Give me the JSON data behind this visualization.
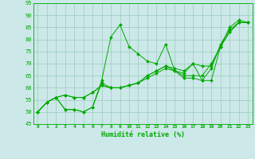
{
  "xlabel": "Humidité relative (%)",
  "xlim": [
    -0.5,
    23.5
  ],
  "ylim": [
    45,
    95
  ],
  "yticks": [
    45,
    50,
    55,
    60,
    65,
    70,
    75,
    80,
    85,
    90,
    95
  ],
  "xticks": [
    0,
    1,
    2,
    3,
    4,
    5,
    6,
    7,
    8,
    9,
    10,
    11,
    12,
    13,
    14,
    15,
    16,
    17,
    18,
    19,
    20,
    21,
    22,
    23
  ],
  "bg_color": "#cce8e8",
  "line_color": "#00aa00",
  "grid_color": "#99ccbb",
  "series": [
    [
      50,
      54,
      56,
      51,
      51,
      50,
      52,
      63,
      81,
      86,
      77,
      74,
      71,
      70,
      78,
      67,
      66,
      70,
      63,
      63,
      77,
      85,
      88,
      87
    ],
    [
      50,
      54,
      56,
      51,
      51,
      50,
      52,
      62,
      60,
      60,
      61,
      62,
      64,
      66,
      68,
      67,
      64,
      64,
      63,
      68,
      78,
      84,
      87,
      87
    ],
    [
      50,
      54,
      56,
      57,
      56,
      56,
      58,
      61,
      60,
      60,
      61,
      62,
      65,
      67,
      69,
      67,
      65,
      65,
      65,
      70,
      77,
      83,
      87,
      87
    ],
    [
      50,
      54,
      56,
      57,
      56,
      56,
      58,
      61,
      60,
      60,
      61,
      62,
      65,
      67,
      69,
      68,
      67,
      70,
      69,
      69,
      77,
      83,
      87,
      87
    ]
  ]
}
